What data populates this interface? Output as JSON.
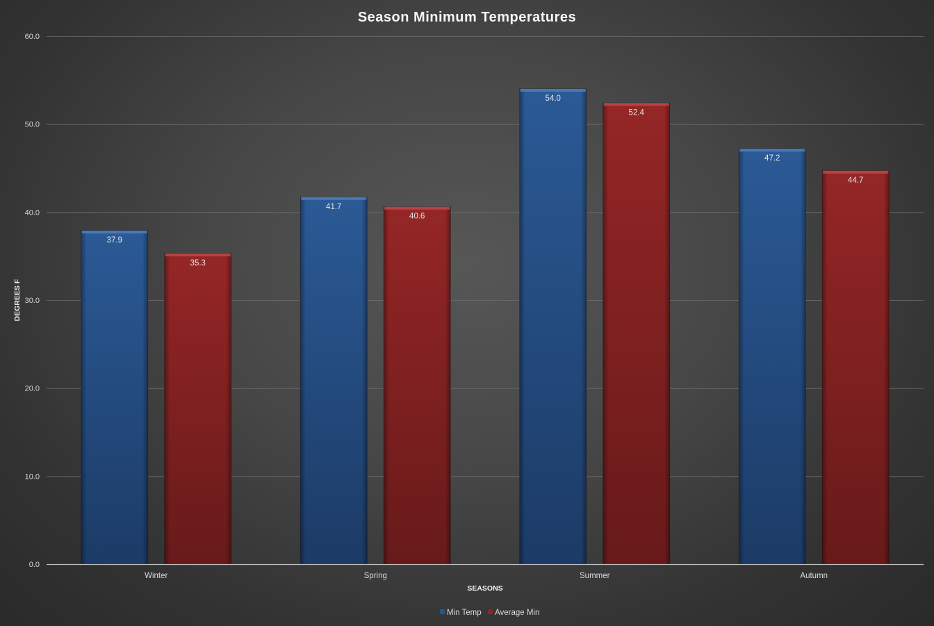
{
  "chart_data": {
    "type": "bar",
    "title": "Season Minimum Temperatures",
    "xlabel": "SEASONS",
    "ylabel": "DEGREES F",
    "categories": [
      "Winter",
      "Spring",
      "Summer",
      "Autumn"
    ],
    "series": [
      {
        "name": "Min Temp",
        "values": [
          37.9,
          41.7,
          54.0,
          47.2
        ],
        "color": "#2a5590"
      },
      {
        "name": "Average Min",
        "values": [
          35.3,
          40.6,
          52.4,
          44.7
        ],
        "color": "#8e2424"
      }
    ],
    "ylim": [
      0,
      60
    ],
    "yticks": [
      "0.0",
      "10.0",
      "20.0",
      "30.0",
      "40.0",
      "50.0",
      "60.0"
    ],
    "grid": true,
    "legend_position": "bottom",
    "data_labels": true
  }
}
